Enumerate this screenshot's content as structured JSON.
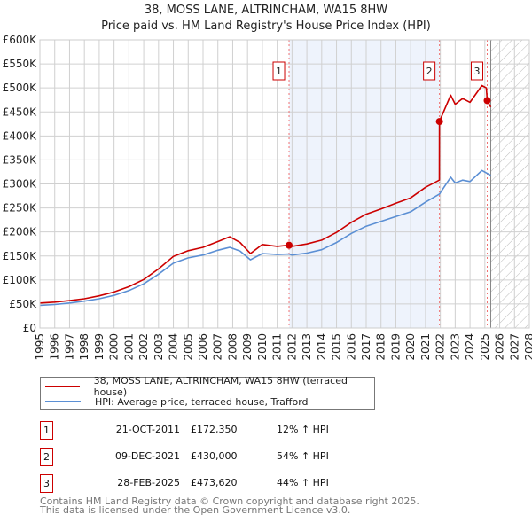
{
  "title": "38, MOSS LANE, ALTRINCHAM, WA15 8HW",
  "subtitle": "Price paid vs. HM Land Registry's House Price Index (HPI)",
  "colors": {
    "property": "#cc0000",
    "hpi": "#5b8fd4",
    "shade": "#eef3fc",
    "marker": "#cc0000"
  },
  "legend": {
    "property": "38, MOSS LANE, ALTRINCHAM, WA15 8HW (terraced house)",
    "hpi": "HPI: Average price, terraced house, Trafford"
  },
  "sales": [
    {
      "num": "1",
      "date": "21-OCT-2011",
      "price": "£172,350",
      "hpi": "12% ↑ HPI"
    },
    {
      "num": "2",
      "date": "09-DEC-2021",
      "price": "£430,000",
      "hpi": "54% ↑ HPI"
    },
    {
      "num": "3",
      "date": "28-FEB-2025",
      "price": "£473,620",
      "hpi": "44% ↑ HPI"
    }
  ],
  "footer": {
    "line1": "Contains HM Land Registry data © Crown copyright and database right 2025.",
    "line2": "This data is licensed under the Open Government Licence v3.0."
  },
  "chart_data": {
    "type": "line",
    "xlim": [
      1995,
      2028
    ],
    "ylim": [
      0,
      600000
    ],
    "yticks": [
      0,
      50000,
      100000,
      150000,
      200000,
      250000,
      300000,
      350000,
      400000,
      450000,
      500000,
      550000,
      600000
    ],
    "ytick_labels": [
      "£0",
      "£50K",
      "£100K",
      "£150K",
      "£200K",
      "£250K",
      "£300K",
      "£350K",
      "£400K",
      "£450K",
      "£500K",
      "£550K",
      "£600K"
    ],
    "xticks": [
      1995,
      1996,
      1997,
      1998,
      1999,
      2000,
      2001,
      2002,
      2003,
      2004,
      2005,
      2006,
      2007,
      2008,
      2009,
      2010,
      2011,
      2012,
      2013,
      2014,
      2015,
      2016,
      2017,
      2018,
      2019,
      2020,
      2021,
      2022,
      2023,
      2024,
      2025,
      2026,
      2027,
      2028
    ],
    "grid": true,
    "shaded_between_sales": [
      2011.8,
      2021.94
    ],
    "forecast_hatch_from": 2025.4,
    "sale_points": [
      {
        "label": "1",
        "x": 2011.8,
        "y": 172350
      },
      {
        "label": "2",
        "x": 2021.94,
        "y": 430000
      },
      {
        "label": "3",
        "x": 2025.16,
        "y": 473620
      }
    ],
    "series": [
      {
        "name": "HPI",
        "x": [
          1995,
          1996,
          1997,
          1998,
          1999,
          2000,
          2001,
          2002,
          2003,
          2004,
          2005,
          2006,
          2007,
          2007.8,
          2008.5,
          2009.2,
          2010,
          2011,
          2011.8,
          2012,
          2013,
          2014,
          2015,
          2016,
          2017,
          2018,
          2019,
          2020,
          2021,
          2021.94,
          2022.7,
          2023,
          2023.5,
          2024,
          2024.8,
          2025.4
        ],
        "y": [
          47000,
          49000,
          52000,
          56000,
          61000,
          68000,
          78000,
          92000,
          112000,
          135000,
          146000,
          152000,
          162000,
          168000,
          160000,
          142000,
          155000,
          153000,
          154000,
          152000,
          156000,
          163000,
          178000,
          197000,
          212000,
          222000,
          232000,
          242000,
          262000,
          279000,
          314000,
          302000,
          308000,
          305000,
          328000,
          318000
        ]
      },
      {
        "name": "Property",
        "x": [
          1995,
          1996,
          1997,
          1998,
          1999,
          2000,
          2001,
          2002,
          2003,
          2004,
          2005,
          2006,
          2007,
          2007.8,
          2008.5,
          2009.2,
          2010,
          2011,
          2011.8,
          2012,
          2013,
          2014,
          2015,
          2016,
          2017,
          2018,
          2019,
          2020,
          2021,
          2021.93,
          2021.94,
          2022.7,
          2023,
          2023.5,
          2024,
          2024.8,
          2025.1,
          2025.16,
          2025.4
        ],
        "y": [
          52000,
          54000,
          57000,
          61000,
          67000,
          75000,
          86000,
          101000,
          123000,
          149000,
          161000,
          168000,
          180000,
          190000,
          178000,
          155000,
          174000,
          170000,
          172350,
          170000,
          175000,
          183000,
          199000,
          220000,
          237000,
          248000,
          260000,
          271000,
          293000,
          308000,
          430000,
          485000,
          466000,
          478000,
          470000,
          505000,
          500000,
          473620,
          460000
        ]
      }
    ]
  }
}
